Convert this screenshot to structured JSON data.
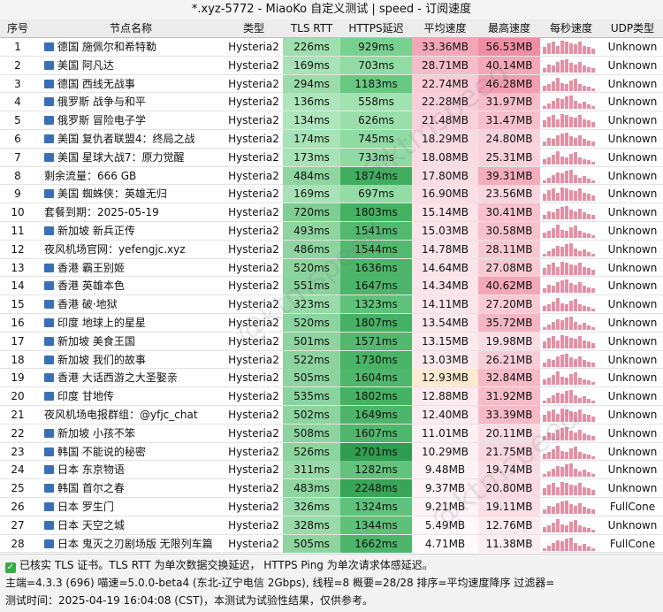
{
  "window_title": "*.xyz-5772 - MiaoKo 自定义测试 | speed - 订阅速度",
  "columns": [
    "序号",
    "节点名称",
    "类型",
    "TLS RTT",
    "HTTPS延迟",
    "平均速度",
    "最高速度",
    "每秒速度",
    "UDP类型"
  ],
  "rows": [
    {
      "idx": "1",
      "flag": true,
      "name": "德国 施佩尔和希特勒",
      "type": "Hysteria2",
      "tls": "226ms",
      "https": "929ms",
      "avg": "33.36MB",
      "max": "56.53MB",
      "udp": "Unknown",
      "tls_c": "#9fdfae",
      "https_c": "#78d18f",
      "avg_c": "#f3a7b6",
      "max_c": "#ef8ea3"
    },
    {
      "idx": "2",
      "flag": true,
      "name": "美国 阿凡达",
      "type": "Hysteria2",
      "tls": "169ms",
      "https": "703ms",
      "avg": "28.71MB",
      "max": "40.14MB",
      "udp": "Unknown",
      "tls_c": "#a7e3b6",
      "https_c": "#92dca4",
      "avg_c": "#f6bcc8",
      "max_c": "#f3a8b8"
    },
    {
      "idx": "3",
      "flag": true,
      "name": "德国 西线无战事",
      "type": "Hysteria2",
      "tls": "294ms",
      "https": "1183ms",
      "avg": "22.74MB",
      "max": "46.28MB",
      "udp": "Unknown",
      "tls_c": "#9bdcaa",
      "https_c": "#68c982",
      "avg_c": "#f8cbd5",
      "max_c": "#f29db0"
    },
    {
      "idx": "4",
      "flag": true,
      "name": "俄罗斯 战争与和平",
      "type": "Hysteria2",
      "tls": "136ms",
      "https": "558ms",
      "avg": "22.28MB",
      "max": "31.97MB",
      "udp": "Unknown",
      "tls_c": "#aee6bb",
      "https_c": "#a2e2b1",
      "avg_c": "#f8ced8",
      "max_c": "#f6bdc9"
    },
    {
      "idx": "5",
      "flag": true,
      "name": "俄罗斯 冒险电子学",
      "type": "Hysteria2",
      "tls": "134ms",
      "https": "626ms",
      "avg": "21.48MB",
      "max": "31.47MB",
      "udp": "Unknown",
      "tls_c": "#aee6bb",
      "https_c": "#9adfab",
      "avg_c": "#f9d1da",
      "max_c": "#f6bfcb"
    },
    {
      "idx": "6",
      "flag": true,
      "name": "美国 复仇者联盟4：终局之战",
      "type": "Hysteria2",
      "tls": "174ms",
      "https": "745ms",
      "avg": "18.29MB",
      "max": "24.80MB",
      "udp": "Unknown",
      "tls_c": "#a6e3b5",
      "https_c": "#8fdba2",
      "avg_c": "#fadbe2",
      "max_c": "#f9d2db"
    },
    {
      "idx": "7",
      "flag": true,
      "name": "美国 星球大战7：原力觉醒",
      "type": "Hysteria2",
      "tls": "173ms",
      "https": "733ms",
      "avg": "18.08MB",
      "max": "25.31MB",
      "udp": "Unknown",
      "tls_c": "#a6e3b5",
      "https_c": "#90dba3",
      "avg_c": "#fadbe2",
      "max_c": "#f9d1da"
    },
    {
      "idx": "8",
      "flag": false,
      "name": "剩余流量：666 GB",
      "type": "Hysteria2",
      "tls": "484ms",
      "https": "1874ms",
      "avg": "17.80MB",
      "max": "39.31MB",
      "udp": "Unknown",
      "tls_c": "#8ed5a0",
      "https_c": "#3fae5f",
      "avg_c": "#fadce3",
      "max_c": "#f4adbc"
    },
    {
      "idx": "9",
      "flag": true,
      "name": "美国 蜘蛛侠：英雄无归",
      "type": "Hysteria2",
      "tls": "169ms",
      "https": "697ms",
      "avg": "16.90MB",
      "max": "23.56MB",
      "udp": "Unknown",
      "tls_c": "#a7e3b6",
      "https_c": "#93dca5",
      "avg_c": "#fbdfe5",
      "max_c": "#f9d5dd"
    },
    {
      "idx": "10",
      "flag": false,
      "name": "套餐到期：2025-05-19",
      "type": "Hysteria2",
      "tls": "720ms",
      "https": "1803ms",
      "avg": "15.14MB",
      "max": "30.41MB",
      "udp": "Unknown",
      "tls_c": "#7ecd93",
      "https_c": "#45b163",
      "avg_c": "#fbe3e8",
      "max_c": "#f7c2cd"
    },
    {
      "idx": "11",
      "flag": true,
      "name": "新加坡 新兵正传",
      "type": "Hysteria2",
      "tls": "493ms",
      "https": "1541ms",
      "avg": "15.03MB",
      "max": "30.58MB",
      "udp": "Unknown",
      "tls_c": "#8ed5a0",
      "https_c": "#53b96f",
      "avg_c": "#fbe3e8",
      "max_c": "#f7c1cc"
    },
    {
      "idx": "12",
      "flag": false,
      "name": "夜风机场官网：yefengjc.xyz",
      "type": "Hysteria2",
      "tls": "486ms",
      "https": "1544ms",
      "avg": "14.78MB",
      "max": "28.11MB",
      "udp": "Unknown",
      "tls_c": "#8ed5a0",
      "https_c": "#53b96f",
      "avg_c": "#fbe4e9",
      "max_c": "#f8c8d2"
    },
    {
      "idx": "13",
      "flag": true,
      "name": "香港 霸王别姬",
      "type": "Hysteria2",
      "tls": "520ms",
      "https": "1636ms",
      "avg": "14.64MB",
      "max": "27.08MB",
      "udp": "Unknown",
      "tls_c": "#8cd49e",
      "https_c": "#4db56a",
      "avg_c": "#fbe4e9",
      "max_c": "#f8cad4"
    },
    {
      "idx": "14",
      "flag": true,
      "name": "香港 英雄本色",
      "type": "Hysteria2",
      "tls": "551ms",
      "https": "1647ms",
      "avg": "14.34MB",
      "max": "40.62MB",
      "udp": "Unknown",
      "tls_c": "#8ad39d",
      "https_c": "#4db56a",
      "avg_c": "#fce5ea",
      "max_c": "#f3a7b7"
    },
    {
      "idx": "15",
      "flag": true,
      "name": "香港 破·地狱",
      "type": "Hysteria2",
      "tls": "323ms",
      "https": "1323ms",
      "avg": "14.11MB",
      "max": "27.20MB",
      "udp": "Unknown",
      "tls_c": "#98daa8",
      "https_c": "#5fc27a",
      "avg_c": "#fce6eb",
      "max_c": "#f8cad4"
    },
    {
      "idx": "16",
      "flag": true,
      "name": "印度 地球上的星星",
      "type": "Hysteria2",
      "tls": "520ms",
      "https": "1807ms",
      "avg": "13.54MB",
      "max": "35.72MB",
      "udp": "Unknown",
      "tls_c": "#8cd49e",
      "https_c": "#45b163",
      "avg_c": "#fce8ec",
      "max_c": "#f5b5c3"
    },
    {
      "idx": "17",
      "flag": true,
      "name": "新加坡 美食王国",
      "type": "Hysteria2",
      "tls": "501ms",
      "https": "1571ms",
      "avg": "13.15MB",
      "max": "19.98MB",
      "udp": "Unknown",
      "tls_c": "#8dd49f",
      "https_c": "#51b86d",
      "avg_c": "#fce9ed",
      "max_c": "#fadce3"
    },
    {
      "idx": "18",
      "flag": true,
      "name": "新加坡 我们的故事",
      "type": "Hysteria2",
      "tls": "522ms",
      "https": "1730ms",
      "avg": "13.03MB",
      "max": "26.21MB",
      "udp": "Unknown",
      "tls_c": "#8cd49e",
      "https_c": "#49b366",
      "avg_c": "#fce9ed",
      "max_c": "#f9cdd7"
    },
    {
      "idx": "19",
      "flag": true,
      "name": "香港 大话西游之大圣娶亲",
      "type": "Hysteria2",
      "tls": "505ms",
      "https": "1604ms",
      "avg": "12.93MB",
      "max": "32.84MB",
      "udp": "Unknown",
      "tls_c": "#8dd49f",
      "https_c": "#4fb76c",
      "avg_c": "#fcead0",
      "max_c": "#f6bac7"
    },
    {
      "idx": "20",
      "flag": true,
      "name": "印度 甘地传",
      "type": "Hysteria2",
      "tls": "535ms",
      "https": "1802ms",
      "avg": "12.88MB",
      "max": "31.92MB",
      "udp": "Unknown",
      "tls_c": "#8bd39d",
      "https_c": "#45b163",
      "avg_c": "#fceaee",
      "max_c": "#f6bdc9"
    },
    {
      "idx": "21",
      "flag": false,
      "name": "夜风机场电报群组：@yfjc_chat",
      "type": "Hysteria2",
      "tls": "502ms",
      "https": "1649ms",
      "avg": "12.40MB",
      "max": "33.39MB",
      "udp": "Unknown",
      "tls_c": "#8dd49f",
      "https_c": "#4db56a",
      "avg_c": "#fdebef",
      "max_c": "#f6b9c6"
    },
    {
      "idx": "22",
      "flag": true,
      "name": "新加坡 小孩不笨",
      "type": "Hysteria2",
      "tls": "508ms",
      "https": "1607ms",
      "avg": "11.01MB",
      "max": "20.11MB",
      "udp": "Unknown",
      "tls_c": "#8dd49f",
      "https_c": "#4fb76c",
      "avg_c": "#fdeff2",
      "max_c": "#fadbe2"
    },
    {
      "idx": "23",
      "flag": true,
      "name": "韩国 不能说的秘密",
      "type": "Hysteria2",
      "tls": "526ms",
      "https": "2701ms",
      "avg": "10.29MB",
      "max": "21.75MB",
      "udp": "Unknown",
      "tls_c": "#8cd49e",
      "https_c": "#2f9c4f",
      "avg_c": "#fdf0f3",
      "max_c": "#fad7df"
    },
    {
      "idx": "24",
      "flag": true,
      "name": "日本 东京物语",
      "type": "Hysteria2",
      "tls": "311ms",
      "https": "1282ms",
      "avg": "9.48MB",
      "max": "19.74MB",
      "udp": "Unknown",
      "tls_c": "#99daa9",
      "https_c": "#62c37c",
      "avg_c": "#fdf2f5",
      "max_c": "#fadde4"
    },
    {
      "idx": "25",
      "flag": true,
      "name": "韩国 首尔之春",
      "type": "Hysteria2",
      "tls": "483ms",
      "https": "2248ms",
      "avg": "9.37MB",
      "max": "20.80MB",
      "udp": "Unknown",
      "tls_c": "#8ed5a0",
      "https_c": "#38a557",
      "avg_c": "#fdf2f5",
      "max_c": "#fad9e0"
    },
    {
      "idx": "26",
      "flag": true,
      "name": "日本 罗生门",
      "type": "Hysteria2",
      "tls": "326ms",
      "https": "1324ms",
      "avg": "9.21MB",
      "max": "19.11MB",
      "udp": "FullCone",
      "tls_c": "#98daa8",
      "https_c": "#5fc27a",
      "avg_c": "#fdf3f5",
      "max_c": "#fbdfe5"
    },
    {
      "idx": "27",
      "flag": true,
      "name": "日本 天空之城",
      "type": "Hysteria2",
      "tls": "328ms",
      "https": "1344ms",
      "avg": "5.49MB",
      "max": "12.76MB",
      "udp": "Unknown",
      "tls_c": "#98daa8",
      "https_c": "#5ec179",
      "avg_c": "#fef8fa",
      "max_c": "#fceaee"
    },
    {
      "idx": "28",
      "flag": true,
      "name": "日本 鬼灭之刃剧场版 无限列车篇",
      "type": "Hysteria2",
      "tls": "505ms",
      "https": "1662ms",
      "avg": "4.71MB",
      "max": "11.38MB",
      "udp": "FullCone",
      "tls_c": "#8dd49f",
      "https_c": "#4cb569",
      "avg_c": "#fefafb",
      "max_c": "#fcedf0"
    }
  ],
  "footer": {
    "line1": "已核实 TLS 证书。TLS RTT 为单次数据交换延迟， HTTPS Ping 为单次请求体感延迟。",
    "line2": "主端=4.3.3 (696) 喵速=5.0.0-beta4 (东北-辽宁电信 2Gbps), 线程=8 概要=28/28 排序=平均速度降序 过滤器=",
    "line3": "测试时间：2025-04-19 16:04:08 (CST)，本测试为试验性结果，仅供参考。"
  },
  "watermark": "@ktmspeed",
  "colors": {
    "tls_col": "#a6e3b5",
    "https_col": "#4db56a",
    "avg_col": "#f6bcc8",
    "max_col": "#f3a8b8",
    "spark": "#e58fa5",
    "check": "#3aa845"
  }
}
